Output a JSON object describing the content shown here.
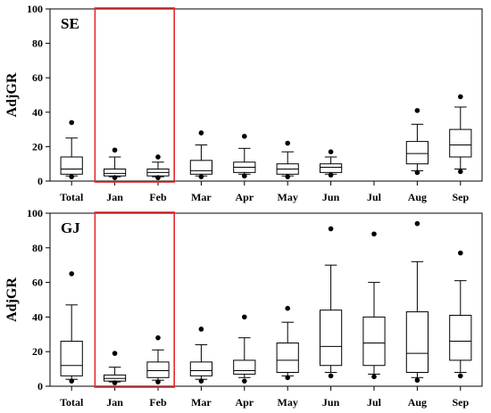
{
  "chart_data": [
    {
      "type": "box",
      "panel_label": "SE",
      "ylabel": "AdjGR",
      "ylim": [
        0,
        100
      ],
      "yticks": [
        0,
        20,
        40,
        60,
        80,
        100
      ],
      "categories": [
        "Total",
        "Jan",
        "Feb",
        "Mar",
        "Apr",
        "May",
        "Jun",
        "Jul",
        "Aug",
        "Sep"
      ],
      "highlight_categories": [
        "Jan",
        "Feb"
      ],
      "highlight_color": "#e8262a",
      "boxes": [
        {
          "category": "Total",
          "whisker_low": 3,
          "q1": 4,
          "median": 7,
          "q3": 14,
          "whisker_high": 25,
          "outlier_low": 2.5,
          "outlier_high": 34
        },
        {
          "category": "Jan",
          "whisker_low": 2.5,
          "q1": 3,
          "median": 4.5,
          "q3": 7,
          "whisker_high": 14,
          "outlier_low": 2,
          "outlier_high": 18
        },
        {
          "category": "Feb",
          "whisker_low": 2.5,
          "q1": 3,
          "median": 5,
          "q3": 7,
          "whisker_high": 11,
          "outlier_low": 2,
          "outlier_high": 14
        },
        {
          "category": "Mar",
          "whisker_low": 3,
          "q1": 4,
          "median": 6,
          "q3": 12,
          "whisker_high": 21,
          "outlier_low": 2.5,
          "outlier_high": 28
        },
        {
          "category": "Apr",
          "whisker_low": 4,
          "q1": 5,
          "median": 8,
          "q3": 11,
          "whisker_high": 19,
          "outlier_low": 3,
          "outlier_high": 26
        },
        {
          "category": "May",
          "whisker_low": 3,
          "q1": 4,
          "median": 7,
          "q3": 10,
          "whisker_high": 17,
          "outlier_low": 2.5,
          "outlier_high": 22
        },
        {
          "category": "Jun",
          "whisker_low": 4,
          "q1": 5,
          "median": 8,
          "q3": 10,
          "whisker_high": 14,
          "outlier_low": 3.5,
          "outlier_high": 17
        },
        {
          "category": "Aug",
          "whisker_low": 6,
          "q1": 10,
          "median": 16,
          "q3": 23,
          "whisker_high": 33,
          "outlier_low": 5,
          "outlier_high": 41
        },
        {
          "category": "Sep",
          "whisker_low": 7,
          "q1": 14,
          "median": 21,
          "q3": 30,
          "whisker_high": 43,
          "outlier_low": 5.5,
          "outlier_high": 49
        }
      ]
    },
    {
      "type": "box",
      "panel_label": "GJ",
      "ylabel": "AdjGR",
      "ylim": [
        0,
        100
      ],
      "yticks": [
        0,
        20,
        40,
        60,
        80,
        100
      ],
      "categories": [
        "Total",
        "Jan",
        "Feb",
        "Mar",
        "Apr",
        "May",
        "Jun",
        "Jul",
        "Aug",
        "Sep"
      ],
      "highlight_categories": [
        "Jan",
        "Feb"
      ],
      "highlight_color": "#e8262a",
      "boxes": [
        {
          "category": "Total",
          "whisker_low": 4,
          "q1": 6,
          "median": 12,
          "q3": 26,
          "whisker_high": 47,
          "outlier_low": 3,
          "outlier_high": 65
        },
        {
          "category": "Jan",
          "whisker_low": 2.5,
          "q1": 3,
          "median": 4.5,
          "q3": 6.5,
          "whisker_high": 11,
          "outlier_low": 2,
          "outlier_high": 19
        },
        {
          "category": "Feb",
          "whisker_low": 3.5,
          "q1": 5,
          "median": 9,
          "q3": 14,
          "whisker_high": 21,
          "outlier_low": 2.5,
          "outlier_high": 28
        },
        {
          "category": "Mar",
          "whisker_low": 4,
          "q1": 6,
          "median": 9,
          "q3": 14,
          "whisker_high": 24,
          "outlier_low": 3,
          "outlier_high": 33
        },
        {
          "category": "Apr",
          "whisker_low": 5,
          "q1": 7,
          "median": 9,
          "q3": 15,
          "whisker_high": 28,
          "outlier_low": 3,
          "outlier_high": 40
        },
        {
          "category": "May",
          "whisker_low": 6,
          "q1": 8,
          "median": 15,
          "q3": 25,
          "whisker_high": 37,
          "outlier_low": 5,
          "outlier_high": 45
        },
        {
          "category": "Jun",
          "whisker_low": 8,
          "q1": 12,
          "median": 23,
          "q3": 44,
          "whisker_high": 70,
          "outlier_low": 6,
          "outlier_high": 91
        },
        {
          "category": "Jul",
          "whisker_low": 7,
          "q1": 12,
          "median": 25,
          "q3": 40,
          "whisker_high": 60,
          "outlier_low": 5.5,
          "outlier_high": 88
        },
        {
          "category": "Aug",
          "whisker_low": 5,
          "q1": 8,
          "median": 19,
          "q3": 43,
          "whisker_high": 72,
          "outlier_low": 3.5,
          "outlier_high": 94
        },
        {
          "category": "Sep",
          "whisker_low": 8,
          "q1": 15,
          "median": 26,
          "q3": 41,
          "whisker_high": 61,
          "outlier_low": 6,
          "outlier_high": 77
        }
      ]
    }
  ]
}
